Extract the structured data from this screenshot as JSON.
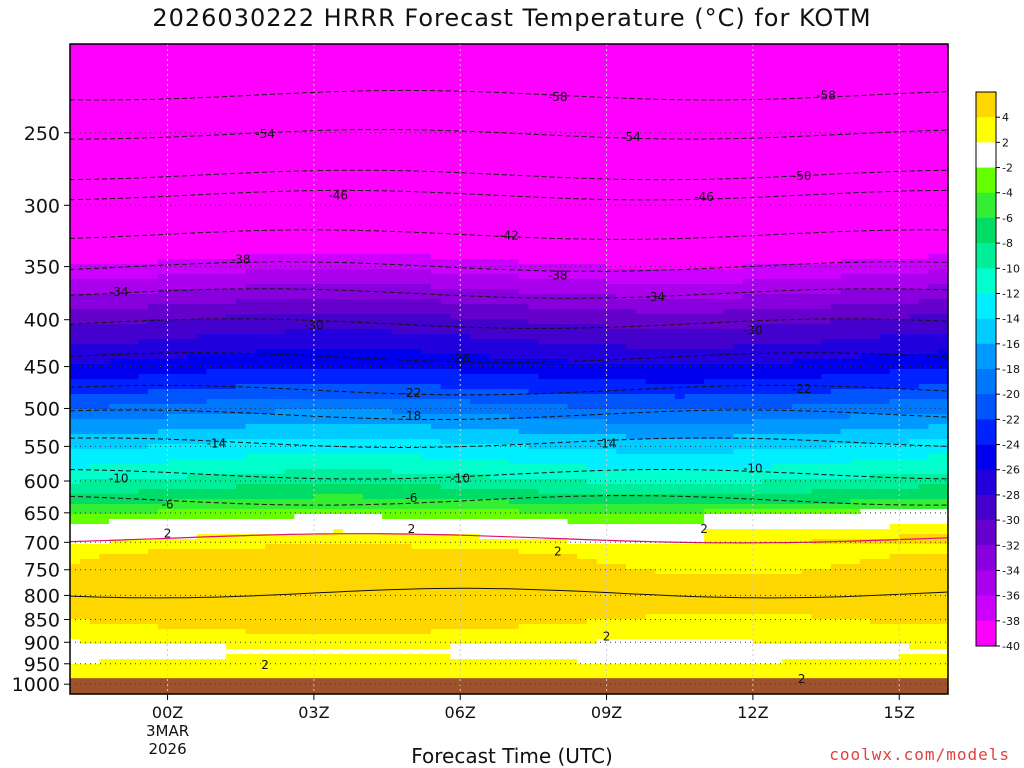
{
  "chart_data": {
    "type": "heatmap",
    "title": "2026030222 HRRR Forecast Temperature (°C) for KOTM",
    "xlabel": "Forecast Time (UTC)",
    "ylabel": "",
    "x_ticks": [
      {
        "value": 0,
        "label": "00Z",
        "sub": [
          "3MAR",
          "2026"
        ]
      },
      {
        "value": 3,
        "label": "03Z",
        "sub": []
      },
      {
        "value": 6,
        "label": "06Z",
        "sub": []
      },
      {
        "value": 9,
        "label": "09Z",
        "sub": []
      },
      {
        "value": 12,
        "label": "12Z",
        "sub": []
      },
      {
        "value": 15,
        "label": "15Z",
        "sub": []
      }
    ],
    "xlim": [
      -2,
      16
    ],
    "y_ticks": [
      250,
      300,
      350,
      400,
      450,
      500,
      550,
      600,
      650,
      700,
      750,
      800,
      850,
      900,
      950,
      1000
    ],
    "ylim": [
      200,
      1025
    ],
    "y_scale": "log-pressure",
    "grid": true,
    "legend": {
      "placement": "right",
      "levels": [
        "4",
        "2",
        "-2",
        "-4",
        "-6",
        "-8",
        "-10",
        "-12",
        "-14",
        "-16",
        "-18",
        "-20",
        "-22",
        "-24",
        "-26",
        "-28",
        "-30",
        "-32",
        "-34",
        "-36",
        "-38",
        "-40"
      ],
      "colors": [
        "#ffd700",
        "#ffff00",
        "#ffffff",
        "#66ff00",
        "#33ee33",
        "#00dd66",
        "#00ee99",
        "#00ffcc",
        "#00eeff",
        "#00ccff",
        "#0099ff",
        "#0077ff",
        "#0055ff",
        "#0022ff",
        "#0000ee",
        "#2200dd",
        "#4400cc",
        "#6600cc",
        "#8800dd",
        "#aa00ee",
        "#cc00ff",
        "#ff00ff"
      ]
    },
    "isotherm_labels": [
      {
        "x": 8.0,
        "p": 228,
        "text": "-58"
      },
      {
        "x": 13.5,
        "p": 227,
        "text": "-58"
      },
      {
        "x": 2.0,
        "p": 250,
        "text": "-54"
      },
      {
        "x": 9.5,
        "p": 252,
        "text": "-54"
      },
      {
        "x": 3.5,
        "p": 292,
        "text": "-46"
      },
      {
        "x": 11.0,
        "p": 293,
        "text": "-46"
      },
      {
        "x": 13.0,
        "p": 278,
        "text": "-50"
      },
      {
        "x": 7.0,
        "p": 323,
        "text": "-42"
      },
      {
        "x": 1.5,
        "p": 343,
        "text": "-38"
      },
      {
        "x": 8.0,
        "p": 357,
        "text": "-38"
      },
      {
        "x": -1.0,
        "p": 372,
        "text": "-34"
      },
      {
        "x": 10.0,
        "p": 377,
        "text": "-34"
      },
      {
        "x": -2.0,
        "p": 397,
        "text": "-30"
      },
      {
        "x": 3.0,
        "p": 405,
        "text": "-30"
      },
      {
        "x": 12.0,
        "p": 410,
        "text": "-30"
      },
      {
        "x": 6.0,
        "p": 440,
        "text": "-26"
      },
      {
        "x": 5.0,
        "p": 480,
        "text": "-22"
      },
      {
        "x": 13.0,
        "p": 475,
        "text": "-22"
      },
      {
        "x": 5.0,
        "p": 508,
        "text": "-18"
      },
      {
        "x": 1.0,
        "p": 545,
        "text": "-14"
      },
      {
        "x": 9.0,
        "p": 545,
        "text": "-14"
      },
      {
        "x": -1.0,
        "p": 595,
        "text": "-10"
      },
      {
        "x": 6.0,
        "p": 595,
        "text": "-10"
      },
      {
        "x": 12.0,
        "p": 580,
        "text": "-10"
      },
      {
        "x": 0.0,
        "p": 635,
        "text": "-6"
      },
      {
        "x": 5.0,
        "p": 625,
        "text": "-6"
      },
      {
        "x": 0.0,
        "p": 683,
        "text": "2"
      },
      {
        "x": 5.0,
        "p": 675,
        "text": "2"
      },
      {
        "x": 11.0,
        "p": 675,
        "text": "2"
      },
      {
        "x": 8.0,
        "p": 715,
        "text": "2"
      },
      {
        "x": 9.0,
        "p": 885,
        "text": "2"
      },
      {
        "x": 2.0,
        "p": 950,
        "text": "2"
      },
      {
        "x": 13.0,
        "p": 985,
        "text": "2"
      }
    ]
  },
  "credit": "coolwx.com/models"
}
